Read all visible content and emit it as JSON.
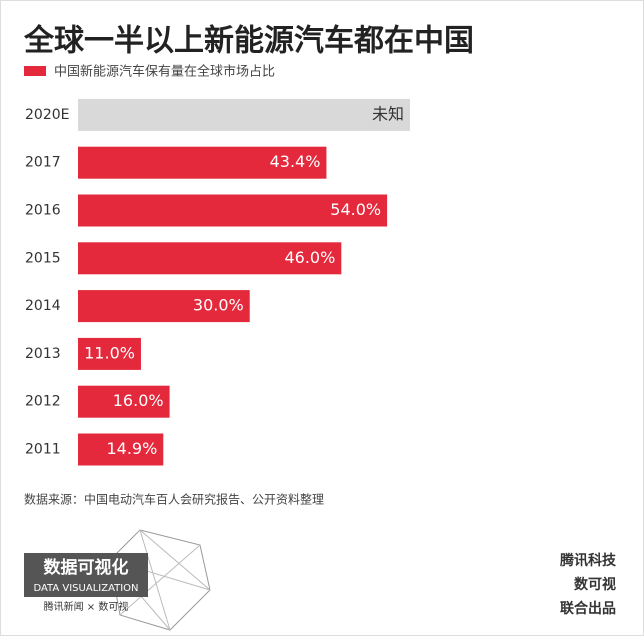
{
  "chart_data": {
    "type": "hbar",
    "title": "全球一半以上新能源汽车都在中国",
    "series": [
      {
        "name": "中国新能源汽车保有量在全球市场占比",
        "color": "#e3293b"
      }
    ],
    "categories": [
      "2020E",
      "2017",
      "2016",
      "2015",
      "2014",
      "2013",
      "2012",
      "2011"
    ],
    "values": [
      null,
      43.4,
      54.0,
      46.0,
      30.0,
      11.0,
      16.0,
      14.9
    ],
    "value_labels": [
      "未知",
      "43.4%",
      "54.0%",
      "46.0%",
      "30.0%",
      "11.0%",
      "16.0%",
      "14.9%"
    ],
    "unknown_color": "#d9d9d9",
    "xlim": [
      0,
      58
    ],
    "source": "数据来源：中国电动汽车百人会研究报告、公开资料整理"
  },
  "footer": {
    "logo_title": "数据可视化",
    "logo_subtitle": "DATA VISUALIZATION",
    "logo_partners": "腾讯新闻 × 数可视",
    "credits": [
      "腾讯科技",
      "数可视",
      "联合出品"
    ]
  }
}
